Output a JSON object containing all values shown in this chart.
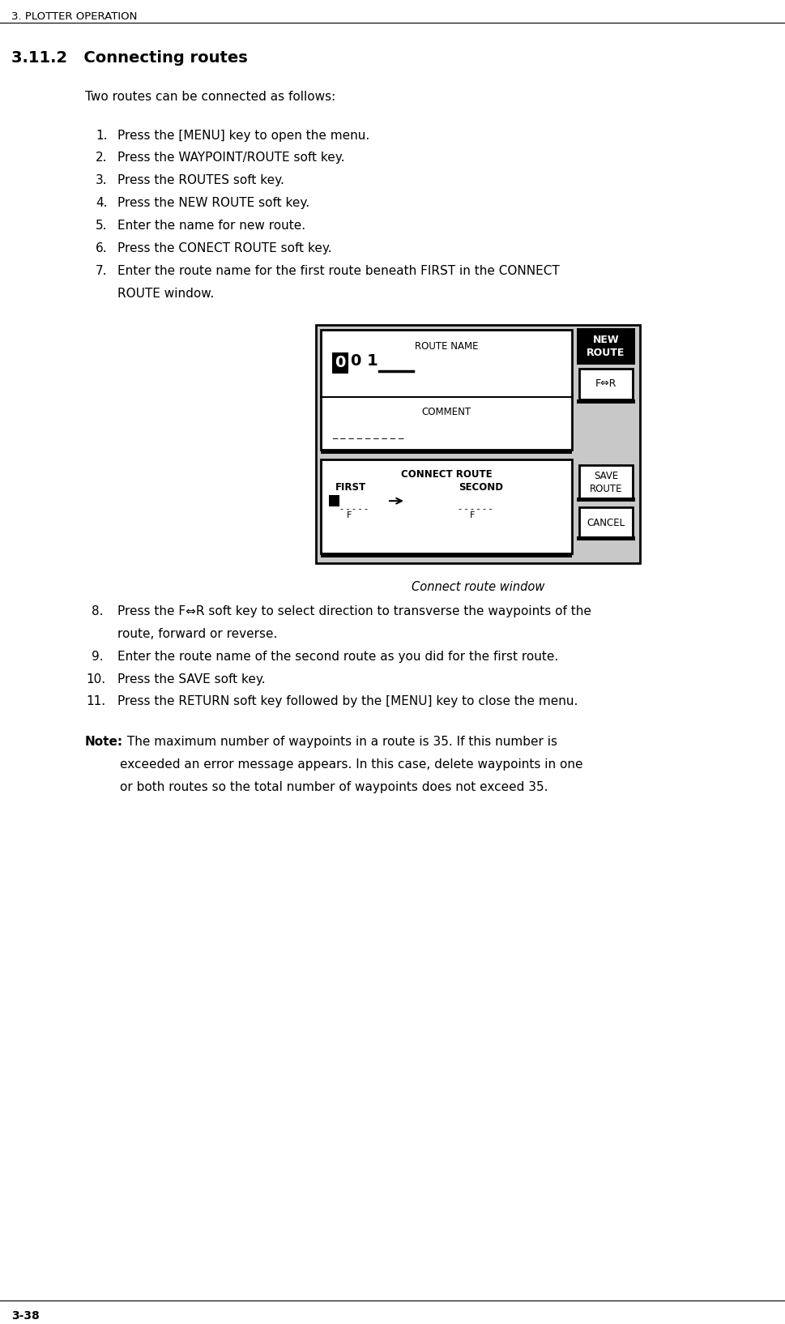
{
  "page_header": "3. PLOTTER OPERATION",
  "section_title": "3.11.2   Connecting routes",
  "intro_text": "Two routes can be connected as follows:",
  "steps": [
    "Press the [MENU] key to open the menu.",
    "Press the WAYPOINT/ROUTE soft key.",
    "Press the ROUTES soft key.",
    "Press the NEW ROUTE soft key.",
    "Enter the name for new route.",
    "Press the CONECT ROUTE soft key.",
    "Enter the route name for the first route beneath FIRST in the CONNECT"
  ],
  "step7_line2": "ROUTE window.",
  "steps_after": [
    "Press the F⇔R soft key to select direction to transverse the waypoints of the",
    "route, forward or reverse.",
    "Enter the route name of the second route as you did for the first route.",
    "Press the SAVE soft key.",
    "Press the RETURN soft key followed by the [MENU] key to close the menu."
  ],
  "steps_after_nums": [
    "8.",
    "9.",
    "10.",
    "11."
  ],
  "caption": "Connect route window",
  "note_bold": "Note:",
  "note_line1": " The maximum number of waypoints in a route is 35. If this number is",
  "note_line2": "exceeded an error message appears. In this case, delete waypoints in one",
  "note_line3": "or both routes so the total number of waypoints does not exceed 35.",
  "page_footer": "3-38",
  "bg_color": "#ffffff",
  "text_color": "#000000",
  "gray_color": "#c8c8c8",
  "dark_color": "#000000"
}
